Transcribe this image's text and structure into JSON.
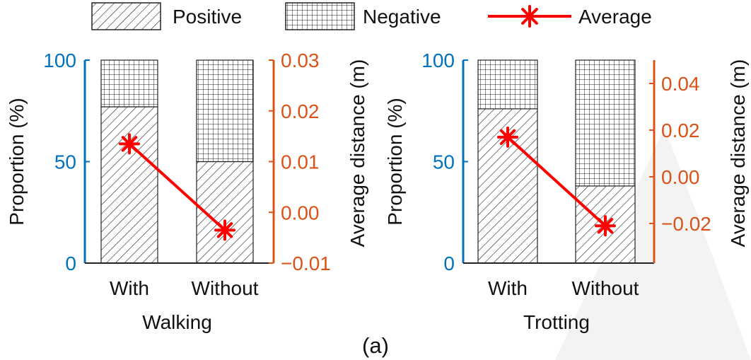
{
  "legend": {
    "items": [
      {
        "label": "Positive",
        "pattern": "hatch"
      },
      {
        "label": "Negative",
        "pattern": "grid"
      },
      {
        "label": "Average",
        "marker": "asterisk",
        "color": "#ff0000"
      }
    ]
  },
  "caption": "(a)",
  "colors": {
    "left_axis": "#0072bd",
    "right_axis": "#d95319",
    "average_line": "#ff0000",
    "watermark": "#f2f2f2"
  },
  "chart_data": [
    {
      "type": "bar",
      "stacked": true,
      "title": "",
      "xlabel": "Walking",
      "categories": [
        "With",
        "Without"
      ],
      "ylabel": "Proportion (%)",
      "ylim": [
        0,
        100
      ],
      "yticks": [
        0,
        50,
        100
      ],
      "series": [
        {
          "name": "Positive",
          "values": [
            77,
            50
          ]
        },
        {
          "name": "Negative",
          "values": [
            23,
            50
          ]
        }
      ],
      "ylabel_right": "Average distance (m)",
      "ylim_right": [
        -0.01,
        0.03
      ],
      "yticks_right": [
        "−0.01",
        "0.00",
        "0.01",
        "0.02",
        "0.03"
      ],
      "yticks_right_values": [
        -0.01,
        0.0,
        0.01,
        0.02,
        0.03
      ],
      "line": {
        "name": "Average",
        "values": [
          0.0135,
          -0.0035
        ]
      }
    },
    {
      "type": "bar",
      "stacked": true,
      "title": "",
      "xlabel": "Trotting",
      "categories": [
        "With",
        "Without"
      ],
      "ylabel": "Proportion (%)",
      "ylim": [
        0,
        100
      ],
      "yticks": [
        0,
        50,
        100
      ],
      "series": [
        {
          "name": "Positive",
          "values": [
            76,
            38
          ]
        },
        {
          "name": "Negative",
          "values": [
            24,
            62
          ]
        }
      ],
      "ylabel_right": "Average distance (m)",
      "ylim_right": [
        -0.037,
        0.05
      ],
      "yticks_right": [
        "−0.02",
        "0.00",
        "0.02",
        "0.04"
      ],
      "yticks_right_values": [
        -0.02,
        0.0,
        0.02,
        0.04
      ],
      "line": {
        "name": "Average",
        "values": [
          0.017,
          -0.021
        ]
      }
    }
  ]
}
